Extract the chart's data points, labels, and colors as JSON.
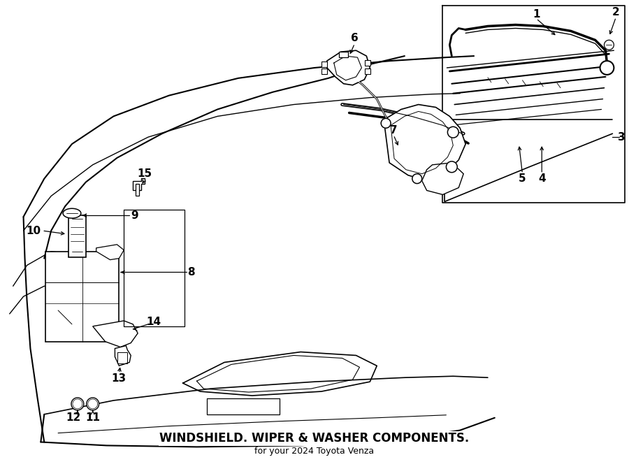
{
  "title": "WINDSHIELD. WIPER & WASHER COMPONENTS.",
  "subtitle": "for your 2024 Toyota Venza",
  "bg_color": "#ffffff",
  "line_color": "#000000",
  "text_color": "#000000",
  "fig_width": 9.0,
  "fig_height": 6.61,
  "dpi": 100
}
